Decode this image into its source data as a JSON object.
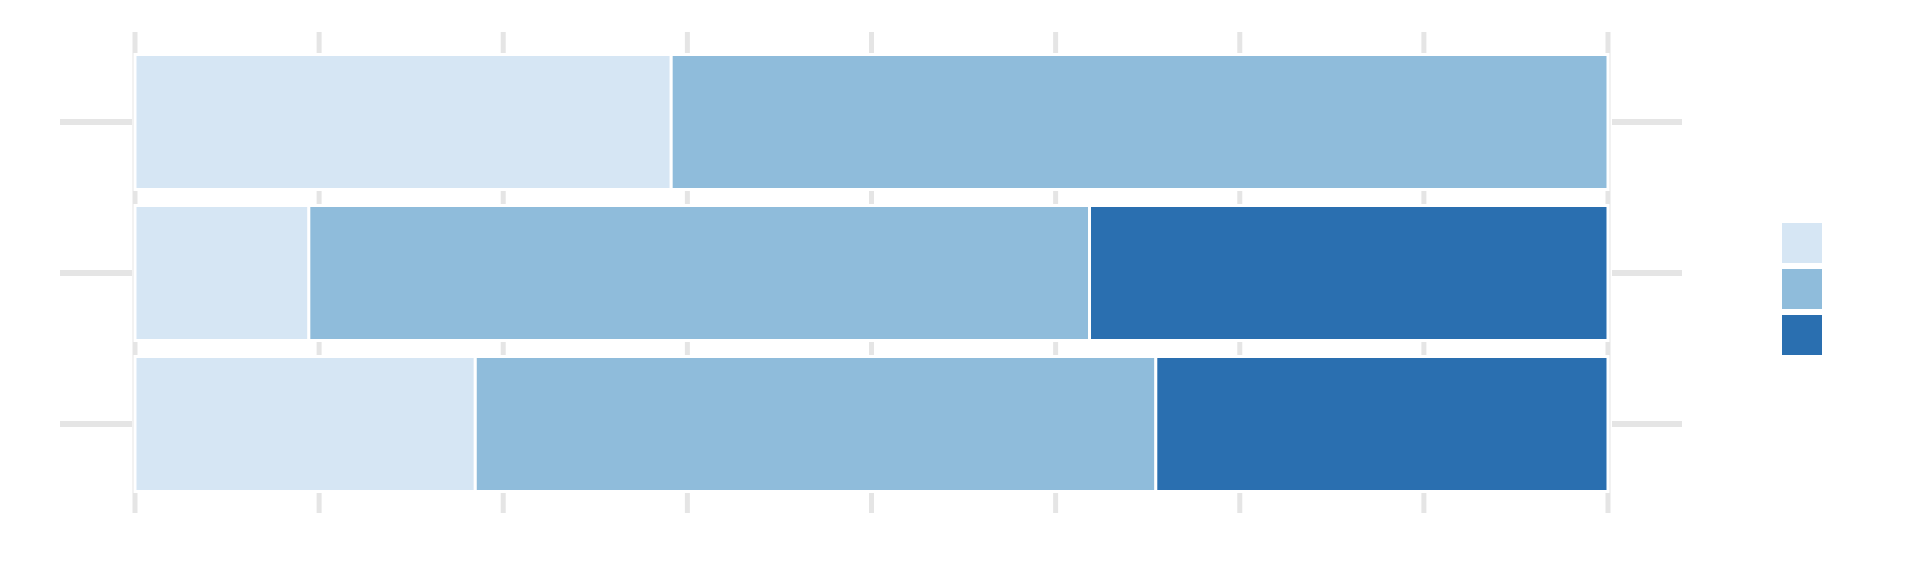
{
  "chart_data": {
    "type": "bar",
    "orientation": "horizontal",
    "stacked": "percent",
    "title": "",
    "xlabel": "",
    "ylabel": "",
    "xlim": [
      0,
      100
    ],
    "x_gridlines": [
      0,
      12.5,
      25,
      37.5,
      50,
      62.5,
      75,
      87.5,
      100
    ],
    "grid": true,
    "legend_position": "right",
    "categories": [
      "",
      "",
      ""
    ],
    "series": [
      {
        "color": "#d6e6f4",
        "values": [
          36.4,
          11.8,
          23.1
        ]
      },
      {
        "color": "#8fbcdb",
        "values": [
          63.6,
          53.0,
          46.2
        ]
      },
      {
        "color": "#2a6fb0",
        "values": [
          0,
          35.2,
          30.7
        ]
      }
    ]
  }
}
